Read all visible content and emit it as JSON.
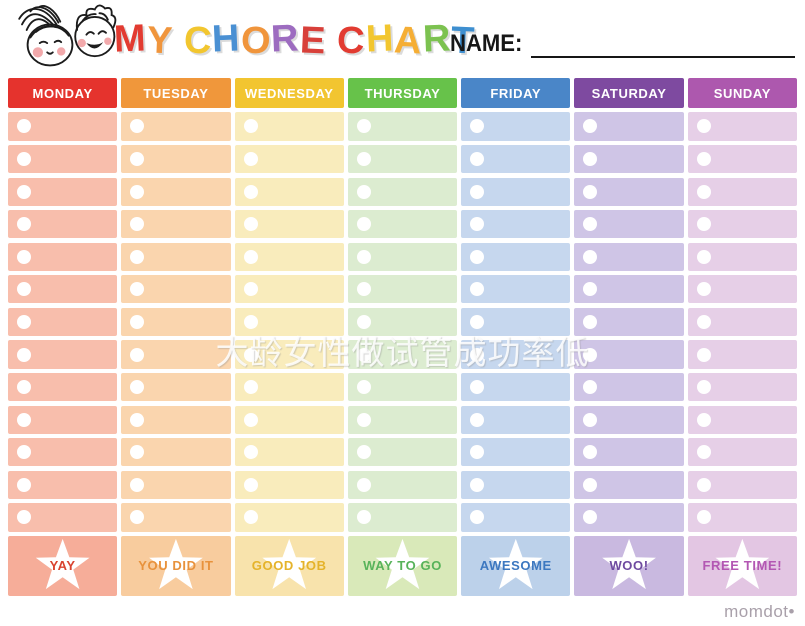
{
  "title": {
    "text": "MY CHORE CHART",
    "letters": [
      {
        "ch": "M",
        "color": "#e23b31"
      },
      {
        "ch": "Y",
        "color": "#f0953c"
      },
      {
        "ch": " ",
        "color": ""
      },
      {
        "ch": "C",
        "color": "#f2c62f"
      },
      {
        "ch": "H",
        "color": "#4a90d3"
      },
      {
        "ch": "O",
        "color": "#f0953c"
      },
      {
        "ch": "R",
        "color": "#9d6cc0"
      },
      {
        "ch": "E",
        "color": "#d8403a"
      },
      {
        "ch": " ",
        "color": ""
      },
      {
        "ch": "C",
        "color": "#e23b31"
      },
      {
        "ch": "H",
        "color": "#f2c62f"
      },
      {
        "ch": "A",
        "color": "#f5ae35"
      },
      {
        "ch": "R",
        "color": "#7cc250"
      },
      {
        "ch": "T",
        "color": "#3e8fd0"
      }
    ]
  },
  "name_field": {
    "label": "NAME:"
  },
  "watermark": {
    "text": "大龄女性做试管成功率低"
  },
  "footer": {
    "brand": "momdot•"
  },
  "grid": {
    "rows_per_day": 13,
    "days": [
      {
        "label": "MONDAY",
        "header_color": "#e5332d",
        "cell_color": "#f8beac",
        "reward_color": "#f6ad99",
        "reward_label": "YAY",
        "reward_text_color": "#d9432f"
      },
      {
        "label": "TUESDAY",
        "header_color": "#f0973b",
        "cell_color": "#fad5ae",
        "reward_color": "#f8cc9e",
        "reward_label": "YOU DID IT",
        "reward_text_color": "#e8923c"
      },
      {
        "label": "WEDNESDAY",
        "header_color": "#f2c530",
        "cell_color": "#f9ecbc",
        "reward_color": "#f8e3ac",
        "reward_label": "GOOD JOB",
        "reward_text_color": "#e5b32a"
      },
      {
        "label": "THURSDAY",
        "header_color": "#67c24a",
        "cell_color": "#dcecd0",
        "reward_color": "#d9e9b9",
        "reward_label": "WAY TO GO",
        "reward_text_color": "#58b35a"
      },
      {
        "label": "FRIDAY",
        "header_color": "#4a86c8",
        "cell_color": "#c6d7ee",
        "reward_color": "#bcd1ea",
        "reward_label": "AWESOME",
        "reward_text_color": "#3d78c0"
      },
      {
        "label": "SATURDAY",
        "header_color": "#7e4aa0",
        "cell_color": "#cfc5e6",
        "reward_color": "#c9b9e0",
        "reward_label": "WOO!",
        "reward_text_color": "#6f4ba0"
      },
      {
        "label": "SUNDAY",
        "header_color": "#ad58ae",
        "cell_color": "#e6cfe7",
        "reward_color": "#e3c6e3",
        "reward_label": "FREE TIME!",
        "reward_text_color": "#b357b3"
      }
    ]
  }
}
